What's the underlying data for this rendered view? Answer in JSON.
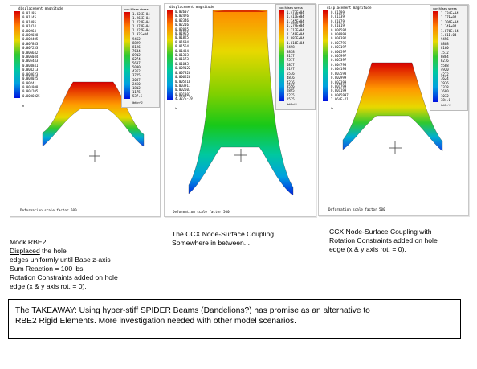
{
  "panels": [
    {
      "id": "rbe2",
      "left_title": "displacement magnitude",
      "right_title": "von Mises stress",
      "left_values": [
        "0.01195",
        "0.01145",
        "0.01095",
        "0.01024",
        "0.00964",
        "0.009038",
        "0.008405",
        "0.007843",
        "0.007233",
        "0.006642",
        "0.006044",
        "0.005443",
        "0.004841",
        "0.004213",
        "0.003623",
        "0.003025",
        "0.00241",
        "0.001808",
        "0.001205",
        "0.0006025"
      ],
      "right_values": [
        "1.325E+04",
        "1.265E+04",
        "1.224E+04",
        "1.174E+04",
        "1.127E+04",
        "1.02E+04",
        "9462",
        "8829",
        "8196",
        "7644",
        "6912",
        "6274",
        "5637",
        "5000",
        "4362",
        "3725",
        "3087",
        "2450",
        "1812",
        "1175",
        "537.5"
      ],
      "left_bottom": "in",
      "right_bottom": "lbf/in^2",
      "footer": "Deformation scale factor 500"
    },
    {
      "id": "ccx-node-surface",
      "left_title": "displacement magnitude",
      "right_title": "von Mises stress",
      "left_values": [
        "0.02607",
        "0.02476",
        "0.02346",
        "0.02216",
        "0.02085",
        "0.01955",
        "0.01825",
        "0.01694",
        "0.01564",
        "0.01434",
        "0.01303",
        "0.01173",
        "0.01043",
        "0.009122",
        "0.007820",
        "0.006520",
        "0.005210",
        "0.003911",
        "0.002607",
        "0.001303",
        "4.327E-19"
      ],
      "right_values": [
        "1.477E+04",
        "1.411E+04",
        "1.345E+04",
        "1.279E+04",
        "1.213E+04",
        "1.148E+04",
        "1.082E+04",
        "1.016E+04",
        "9498",
        "8838",
        "8177",
        "7517",
        "6857",
        "6197",
        "5536",
        "4876",
        "4216",
        "3556",
        "2895",
        "2235",
        "1575"
      ],
      "left_bottom": "in",
      "right_bottom": "lbf/in^2",
      "footer": "Deformation scale factor 500"
    },
    {
      "id": "ccx-rot",
      "left_title": "displacement magnitude",
      "right_title": "von Mises stress",
      "left_values": [
        "0.01199",
        "0.01139",
        "0.01079",
        "0.01019",
        "0.009594",
        "0.008993",
        "0.008392",
        "0.007795",
        "0.007197",
        "0.006597",
        "0.005997",
        "0.005397",
        "0.004798",
        "0.004198",
        "0.003598",
        "0.002999",
        "0.002399",
        "0.001799",
        "0.001199",
        "0.0005997",
        "2.064E-21"
      ],
      "right_values": [
        "1.334E+04",
        "1.27E+04",
        "1.206E+04",
        "1.14E+04",
        "1.076E+04",
        "1.01E+04",
        "9456",
        "8808",
        "8160",
        "7512",
        "6864",
        "6216",
        "5568",
        "4920",
        "4272",
        "3624",
        "2976",
        "2328",
        "1680",
        "1032",
        "384.0"
      ],
      "left_bottom": "in",
      "right_bottom": "lbf/in^2",
      "footer": "Deformation scale factor 500"
    }
  ],
  "captions": {
    "rbe2_title": "Mock RBE2.",
    "rbe2_displaced": "Displaced",
    "rbe2_rest": " the hole",
    "rbe2_body": "edges uniformly until Base z-axis\nSum Reaction = 100 lbs\nRotation Constraints added on hole\nedge (x & y axis rot. = 0).",
    "ccx1": "The CCX Node-Surface Coupling.\nSomewhere in between...",
    "ccx2": "CCX Node-Surface Coupling with\nRotation Constraints added on hole\nedge (x & y axis rot. = 0)."
  },
  "takeaway": "The TAKEAWAY:  Using hyper-stiff SPIDER Beams (Dandelions?) has promise as an alternative to\nRBE2 Rigid Elements.  More investigation needed with other model scenarios.",
  "colors": {
    "gradient": [
      "#d80000",
      "#ff4a00",
      "#ff9a00",
      "#e8d800",
      "#7ed800",
      "#18c818",
      "#00c8a0",
      "#00a0e0",
      "#0058f0",
      "#0010e0"
    ]
  }
}
